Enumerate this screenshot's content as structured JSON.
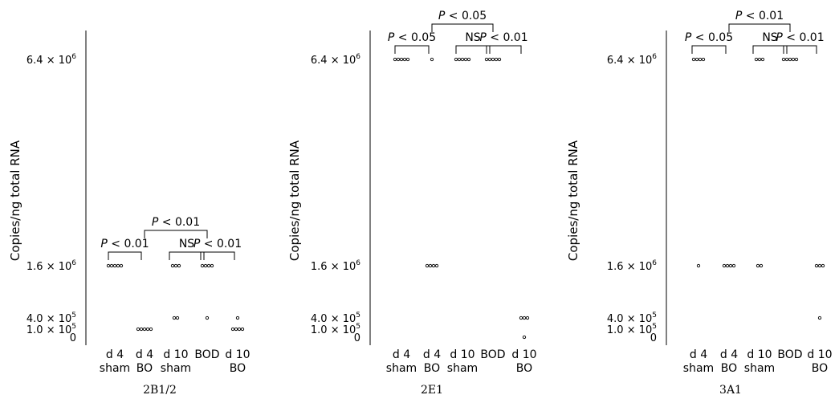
{
  "chart_data": [
    {
      "type": "scatter",
      "title": "2B1/2",
      "ylabel": "Copies/ng total RNA",
      "yticks": [
        {
          "value": 6400000,
          "label": "6.4 × 10",
          "exp": "6"
        },
        {
          "value": 1600000,
          "label": "1.6 × 10",
          "exp": "6"
        },
        {
          "value": 400000,
          "label": "4.0 × 10",
          "exp": "5"
        },
        {
          "value": 100000,
          "label": "1.0 × 10",
          "exp": "5"
        },
        {
          "value": 0,
          "label": "0",
          "exp": ""
        }
      ],
      "categories": [
        {
          "line1": "d 4",
          "line2": "sham"
        },
        {
          "line1": "d 4",
          "line2": "BO"
        },
        {
          "line1": "d 10",
          "line2": "sham"
        },
        {
          "line1": "BOD",
          "line2": ""
        },
        {
          "line1": "d 10",
          "line2": "BO"
        }
      ],
      "points": [
        {
          "category": 0,
          "y": 1600000,
          "count": 5
        },
        {
          "category": 1,
          "y": 100000,
          "count": 5
        },
        {
          "category": 2,
          "y": 1600000,
          "count": 3
        },
        {
          "category": 2,
          "y": 400000,
          "count": 2
        },
        {
          "category": 3,
          "y": 1600000,
          "count": 4
        },
        {
          "category": 3,
          "y": 400000,
          "count": 1
        },
        {
          "category": 4,
          "y": 400000,
          "count": 1
        },
        {
          "category": 4,
          "y": 100000,
          "count": 4
        }
      ],
      "annotations": [
        {
          "from": 0,
          "to": 1,
          "level": 1,
          "prefix": "P",
          "text": " < 0.01"
        },
        {
          "from": 2,
          "to": 3,
          "level": 1,
          "prefix": "",
          "text": "NS"
        },
        {
          "from": 3,
          "to": 4,
          "level": 1,
          "prefix": "P",
          "text": " < 0.01"
        },
        {
          "from": 1,
          "to": 3,
          "level": 2,
          "prefix": "P",
          "text": " < 0.01"
        }
      ]
    },
    {
      "type": "scatter",
      "title": "2E1",
      "ylabel": "Copies/ng total RNA",
      "yticks": [
        {
          "value": 6400000,
          "label": "6.4 × 10",
          "exp": "6"
        },
        {
          "value": 1600000,
          "label": "1.6 × 10",
          "exp": "6"
        },
        {
          "value": 400000,
          "label": "4.0 × 10",
          "exp": "5"
        },
        {
          "value": 100000,
          "label": "1.0 × 10",
          "exp": "5"
        },
        {
          "value": 0,
          "label": "0",
          "exp": ""
        }
      ],
      "categories": [
        {
          "line1": "d 4",
          "line2": "sham"
        },
        {
          "line1": "d 4",
          "line2": "BO"
        },
        {
          "line1": "d 10",
          "line2": "sham"
        },
        {
          "line1": "BOD",
          "line2": ""
        },
        {
          "line1": "d 10",
          "line2": "BO"
        }
      ],
      "points": [
        {
          "category": 0,
          "y": 6400000,
          "count": 5
        },
        {
          "category": 1,
          "y": 6400000,
          "count": 1
        },
        {
          "category": 1,
          "y": 1600000,
          "count": 4
        },
        {
          "category": 2,
          "y": 6400000,
          "count": 5
        },
        {
          "category": 3,
          "y": 6400000,
          "count": 5
        },
        {
          "category": 4,
          "y": 400000,
          "count": 3
        },
        {
          "category": 4,
          "y": 0,
          "count": 1
        }
      ],
      "annotations": [
        {
          "from": 0,
          "to": 1,
          "level": 1,
          "prefix": "P",
          "text": " < 0.05"
        },
        {
          "from": 2,
          "to": 3,
          "level": 1,
          "prefix": "",
          "text": "NS"
        },
        {
          "from": 3,
          "to": 4,
          "level": 1,
          "prefix": "P",
          "text": " < 0.01"
        },
        {
          "from": 1,
          "to": 3,
          "level": 2,
          "prefix": "P",
          "text": " < 0.05"
        }
      ]
    },
    {
      "type": "scatter",
      "title": "3A1",
      "ylabel": "Copies/ng total RNA",
      "yticks": [
        {
          "value": 6400000,
          "label": "6.4 × 10",
          "exp": "6"
        },
        {
          "value": 1600000,
          "label": "1.6 × 10",
          "exp": "6"
        },
        {
          "value": 400000,
          "label": "4.0 × 10",
          "exp": "5"
        },
        {
          "value": 100000,
          "label": "1.0 × 10",
          "exp": "5"
        },
        {
          "value": 0,
          "label": "0",
          "exp": ""
        }
      ],
      "categories": [
        {
          "line1": "d 4",
          "line2": "sham"
        },
        {
          "line1": "d 4",
          "line2": "BO"
        },
        {
          "line1": "d 10",
          "line2": "sham"
        },
        {
          "line1": "BOD",
          "line2": ""
        },
        {
          "line1": "d 10",
          "line2": "BO"
        }
      ],
      "points": [
        {
          "category": 0,
          "y": 6400000,
          "count": 4
        },
        {
          "category": 0,
          "y": 1600000,
          "count": 1
        },
        {
          "category": 1,
          "y": 1600000,
          "count": 4
        },
        {
          "category": 2,
          "y": 6400000,
          "count": 3
        },
        {
          "category": 2,
          "y": 1600000,
          "count": 2
        },
        {
          "category": 3,
          "y": 6400000,
          "count": 5
        },
        {
          "category": 4,
          "y": 1600000,
          "count": 3
        },
        {
          "category": 4,
          "y": 400000,
          "count": 1
        }
      ],
      "annotations": [
        {
          "from": 0,
          "to": 1,
          "level": 1,
          "prefix": "P",
          "text": " < 0.05"
        },
        {
          "from": 2,
          "to": 3,
          "level": 1,
          "prefix": "",
          "text": "NS"
        },
        {
          "from": 3,
          "to": 4,
          "level": 1,
          "prefix": "P",
          "text": " < 0.01"
        },
        {
          "from": 1,
          "to": 3,
          "level": 2,
          "prefix": "P",
          "text": " < 0.01"
        }
      ]
    }
  ]
}
